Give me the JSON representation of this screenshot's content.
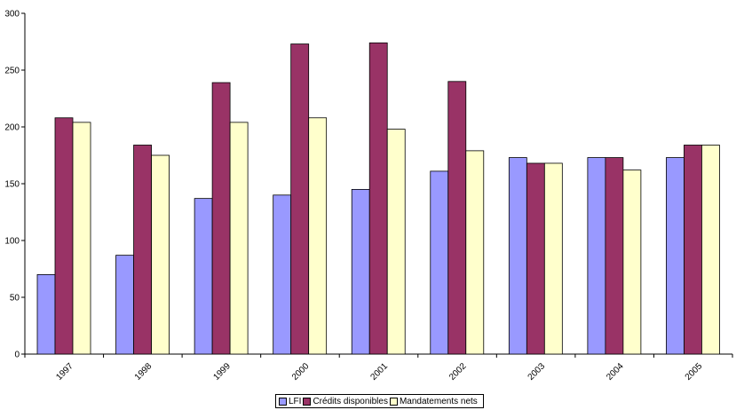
{
  "chart_data": {
    "type": "bar",
    "categories": [
      "1997",
      "1998",
      "1999",
      "2000",
      "2001",
      "2002",
      "2003",
      "2004",
      "2005"
    ],
    "series": [
      {
        "name": "LFI",
        "color": "#9999ff",
        "values": [
          70,
          87,
          137,
          140,
          145,
          161,
          173,
          173,
          173
        ]
      },
      {
        "name": "Crédits disponibles",
        "color": "#993366",
        "values": [
          208,
          184,
          239,
          273,
          274,
          240,
          168,
          173,
          184
        ]
      },
      {
        "name": "Mandatements nets",
        "color": "#ffffcc",
        "values": [
          204,
          175,
          204,
          208,
          198,
          179,
          168,
          162,
          184
        ]
      }
    ],
    "ylim": [
      0,
      300
    ],
    "yticks": [
      0,
      50,
      100,
      150,
      200,
      250,
      300
    ],
    "grid": false,
    "legend_position": "bottom"
  }
}
